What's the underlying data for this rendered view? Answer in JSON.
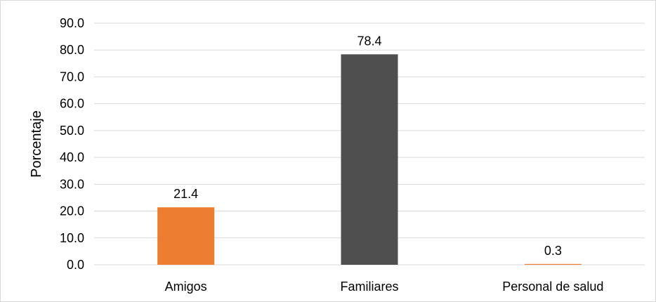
{
  "chart_data": {
    "type": "bar",
    "categories": [
      "Amigos",
      "Familiares",
      "Personal de salud"
    ],
    "values": [
      21.4,
      78.4,
      0.3
    ],
    "data_labels": [
      "21.4",
      "78.4",
      "0.3"
    ],
    "colors": [
      "#ED7D31",
      "#4F4F4F",
      "#ED7D31"
    ],
    "ylabel": "Porcentaje",
    "ylim": [
      0,
      90
    ],
    "yticks": [
      "0.0",
      "10.0",
      "20.0",
      "30.0",
      "40.0",
      "50.0",
      "60.0",
      "70.0",
      "80.0",
      "90.0"
    ],
    "ytick_values": [
      0,
      10,
      20,
      30,
      40,
      50,
      60,
      70,
      80,
      90
    ],
    "grid": true,
    "gridline_color": "#d9d9d9",
    "legend": "none"
  }
}
